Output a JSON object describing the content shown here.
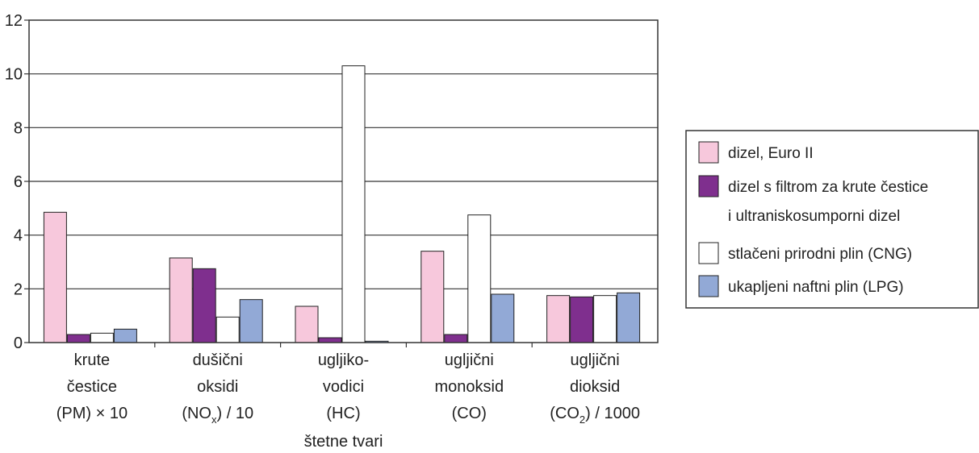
{
  "chart_data": {
    "type": "bar",
    "title": "",
    "xlabel": "štetne tvari",
    "ylabel": "",
    "ylim": [
      0,
      12
    ],
    "yticks": [
      "0",
      "2",
      "4",
      "6",
      "8",
      "10",
      "12"
    ],
    "grid": true,
    "legend_position": "right",
    "categories": [
      [
        "krute",
        "čestice",
        "(PM) × 10"
      ],
      [
        "dušični",
        "oksidi",
        "(NOx) / 10"
      ],
      [
        "ugljiko-",
        "vodici",
        "(HC)"
      ],
      [
        "ugljični",
        "monoksid",
        "(CO)"
      ],
      [
        "ugljični",
        "dioksid",
        "(CO2) / 1000"
      ]
    ],
    "series": [
      {
        "name": "dizel, Euro II",
        "color": "#f7c8dc",
        "values": [
          4.85,
          3.15,
          1.35,
          3.4,
          1.75
        ]
      },
      {
        "name": "dizel s filtrom za krute čestice i ultraniskosumporni dizel",
        "color": "#7f2f8e",
        "values": [
          0.3,
          2.75,
          0.18,
          0.3,
          1.7
        ]
      },
      {
        "name": "stlačeni prirodni plin (CNG)",
        "color": "#ffffff",
        "values": [
          0.35,
          0.95,
          10.3,
          4.75,
          1.75
        ]
      },
      {
        "name": "ukapljeni naftni plin (LPG)",
        "color": "#92a9d6",
        "values": [
          0.5,
          1.6,
          0.05,
          1.8,
          1.85
        ]
      }
    ],
    "legend_lines": [
      [
        "dizel, Euro II"
      ],
      [
        "dizel s filtrom za krute čestice",
        "i ultraniskosumporni dizel"
      ],
      [
        "stlačeni prirodni plin (CNG)"
      ],
      [
        "ukapljeni naftni plin (LPG)"
      ]
    ]
  }
}
